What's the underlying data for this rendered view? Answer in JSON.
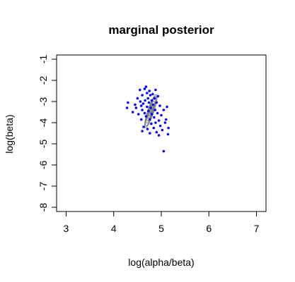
{
  "chart_data": {
    "type": "scatter",
    "title": "marginal posterior",
    "xlabel": "log(alpha/beta)",
    "ylabel": "log(beta)",
    "xlim": [
      2.8,
      7.2
    ],
    "ylim": [
      -8.2,
      -0.8
    ],
    "x_ticks": [
      3,
      4,
      5,
      6,
      7
    ],
    "x_tick_labels": [
      "3",
      "4",
      "5",
      "6",
      "7"
    ],
    "y_ticks": [
      -1,
      -2,
      -3,
      -4,
      -5,
      -6,
      -7,
      -8
    ],
    "y_tick_labels": [
      "-1",
      "-2",
      "-3",
      "-4",
      "-5",
      "-6",
      "-7",
      "-8"
    ],
    "grid": false,
    "point_color": "#0000ff",
    "contour_color": "#808080",
    "contours": {
      "center": [
        4.78,
        -3.45
      ],
      "semi_axes_scale": [
        0.3,
        0.95
      ],
      "rotation_deg": 65,
      "levels": [
        0.15,
        0.3,
        0.45,
        0.6,
        0.75,
        0.9,
        1.0
      ]
    },
    "points": [
      {
        "x": 4.3,
        "y": -3.05
      },
      {
        "x": 4.28,
        "y": -3.3
      },
      {
        "x": 4.45,
        "y": -3.15
      },
      {
        "x": 4.47,
        "y": -3.3
      },
      {
        "x": 4.5,
        "y": -2.85
      },
      {
        "x": 4.52,
        "y": -3.6
      },
      {
        "x": 4.55,
        "y": -2.45
      },
      {
        "x": 4.56,
        "y": -3.0
      },
      {
        "x": 4.58,
        "y": -3.2
      },
      {
        "x": 4.58,
        "y": -3.85
      },
      {
        "x": 4.6,
        "y": -2.7
      },
      {
        "x": 4.6,
        "y": -3.4
      },
      {
        "x": 4.62,
        "y": -3.1
      },
      {
        "x": 4.63,
        "y": -4.2
      },
      {
        "x": 4.65,
        "y": -2.4
      },
      {
        "x": 4.65,
        "y": -3.55
      },
      {
        "x": 4.66,
        "y": -2.95
      },
      {
        "x": 4.68,
        "y": -3.7
      },
      {
        "x": 4.7,
        "y": -2.6
      },
      {
        "x": 4.7,
        "y": -3.25
      },
      {
        "x": 4.71,
        "y": -4.3
      },
      {
        "x": 4.72,
        "y": -2.85
      },
      {
        "x": 4.73,
        "y": -3.45
      },
      {
        "x": 4.74,
        "y": -3.05
      },
      {
        "x": 4.75,
        "y": -2.5
      },
      {
        "x": 4.76,
        "y": -3.85
      },
      {
        "x": 4.77,
        "y": -2.7
      },
      {
        "x": 4.78,
        "y": -3.3
      },
      {
        "x": 4.79,
        "y": -4.05
      },
      {
        "x": 4.8,
        "y": -2.95
      },
      {
        "x": 4.8,
        "y": -3.6
      },
      {
        "x": 4.82,
        "y": -2.65
      },
      {
        "x": 4.83,
        "y": -3.15
      },
      {
        "x": 4.84,
        "y": -4.25
      },
      {
        "x": 4.85,
        "y": -3.75
      },
      {
        "x": 4.86,
        "y": -2.85
      },
      {
        "x": 4.87,
        "y": -3.4
      },
      {
        "x": 4.88,
        "y": -4.0
      },
      {
        "x": 4.9,
        "y": -3.05
      },
      {
        "x": 4.9,
        "y": -4.45
      },
      {
        "x": 4.92,
        "y": -3.55
      },
      {
        "x": 4.93,
        "y": -2.75
      },
      {
        "x": 4.95,
        "y": -3.9
      },
      {
        "x": 4.97,
        "y": -3.2
      },
      {
        "x": 4.98,
        "y": -4.15
      },
      {
        "x": 5.0,
        "y": -3.65
      },
      {
        "x": 5.02,
        "y": -4.35
      },
      {
        "x": 5.05,
        "y": -3.4
      },
      {
        "x": 5.08,
        "y": -4.0
      },
      {
        "x": 5.1,
        "y": -3.85
      },
      {
        "x": 5.12,
        "y": -3.25
      },
      {
        "x": 5.15,
        "y": -4.25
      },
      {
        "x": 5.14,
        "y": -4.55
      },
      {
        "x": 5.05,
        "y": -5.35
      },
      {
        "x": 4.6,
        "y": -4.4
      },
      {
        "x": 4.95,
        "y": -4.6
      },
      {
        "x": 4.68,
        "y": -2.3
      },
      {
        "x": 4.88,
        "y": -2.45
      },
      {
        "x": 4.4,
        "y": -3.5
      },
      {
        "x": 4.76,
        "y": -4.5
      }
    ]
  }
}
